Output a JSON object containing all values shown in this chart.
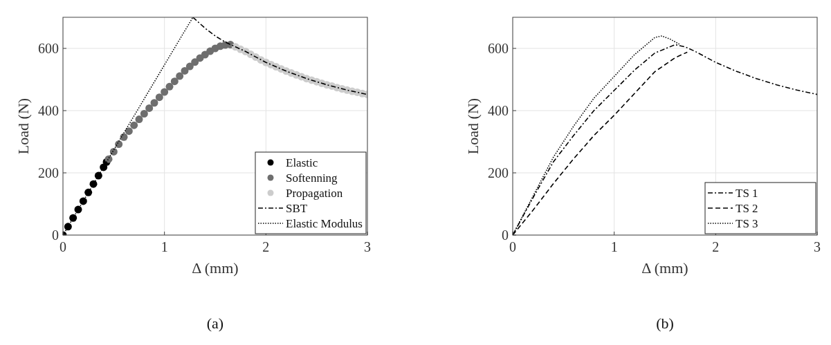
{
  "chart_data": [
    {
      "type": "line",
      "xlabel": "Δ (mm)",
      "ylabel": "Load (N)",
      "annotations": [
        "(a)"
      ],
      "xlim": [
        0,
        3
      ],
      "ylim": [
        0,
        700
      ],
      "xticks": [
        0,
        1,
        2,
        3
      ],
      "yticks": [
        0,
        200,
        400,
        600
      ],
      "grid": true,
      "legend": "bottom right",
      "series": [
        {
          "name": "Elastic",
          "type": "scatter",
          "marker": "circle",
          "color": "#000000",
          "x": [
            0,
            0.05,
            0.1,
            0.15,
            0.2,
            0.25,
            0.3,
            0.35,
            0.4,
            0.43
          ],
          "values": [
            0,
            27,
            55,
            82,
            109,
            137,
            164,
            191,
            218,
            235
          ]
        },
        {
          "name": "Softenning",
          "type": "scatter",
          "marker": "circle",
          "color": "#6e6e6e",
          "x": [
            0.45,
            0.5,
            0.55,
            0.6,
            0.65,
            0.7,
            0.75,
            0.8,
            0.85,
            0.9,
            0.95,
            1.0,
            1.05,
            1.1,
            1.15,
            1.2,
            1.25,
            1.3,
            1.35,
            1.4,
            1.45,
            1.5,
            1.55,
            1.6,
            1.65
          ],
          "values": [
            244,
            268,
            292,
            315,
            334,
            353,
            372,
            390,
            408,
            425,
            443,
            460,
            477,
            494,
            511,
            528,
            542,
            556,
            569,
            580,
            591,
            600,
            607,
            611,
            612
          ]
        },
        {
          "name": "Propagation",
          "type": "scatter",
          "marker": "circle",
          "color": "#cccccc",
          "x": [
            1.7,
            1.75,
            1.8,
            1.85,
            1.9,
            1.95,
            2.0,
            2.05,
            2.1,
            2.15,
            2.2,
            2.25,
            2.3,
            2.35,
            2.4,
            2.45,
            2.5,
            2.55,
            2.6,
            2.65,
            2.7,
            2.75,
            2.8,
            2.85,
            2.9,
            2.95,
            3.0
          ],
          "values": [
            605,
            597,
            590,
            581,
            572,
            563,
            555,
            548,
            541,
            534,
            527,
            521,
            515,
            509,
            503,
            498,
            493,
            488,
            483,
            479,
            474,
            470,
            466,
            462,
            459,
            455,
            452
          ]
        },
        {
          "name": "SBT",
          "type": "line",
          "line_style": "dashdot",
          "color": "#000000",
          "x": [
            1.28,
            1.4,
            1.5,
            1.6,
            1.7,
            1.8,
            2.0,
            2.2,
            2.4,
            2.6,
            2.8,
            3.0
          ],
          "values": [
            700,
            665,
            640,
            620,
            605,
            590,
            555,
            527,
            503,
            483,
            466,
            452
          ]
        },
        {
          "name": "Elastic Modulus",
          "type": "line",
          "line_style": "dotted",
          "color": "#000000",
          "x": [
            0,
            1.28
          ],
          "values": [
            0,
            700
          ]
        }
      ]
    },
    {
      "type": "line",
      "xlabel": "Δ (mm)",
      "ylabel": "Load (N)",
      "annotations": [
        "(b)"
      ],
      "xlim": [
        0,
        3
      ],
      "ylim": [
        0,
        700
      ],
      "xticks": [
        0,
        1,
        2,
        3
      ],
      "yticks": [
        0,
        200,
        400,
        600
      ],
      "grid": true,
      "legend": "bottom right",
      "series": [
        {
          "name": "TS 1",
          "line_style": "dashdot",
          "color": "#000000",
          "x": [
            0,
            0.2,
            0.4,
            0.6,
            0.8,
            1.0,
            1.2,
            1.4,
            1.6,
            1.7,
            1.8,
            2.0,
            2.2,
            2.4,
            2.6,
            2.8,
            3.0
          ],
          "values": [
            0,
            120,
            235,
            320,
            400,
            465,
            530,
            585,
            612,
            605,
            590,
            555,
            527,
            503,
            483,
            466,
            452
          ]
        },
        {
          "name": "TS 2",
          "line_style": "dashed",
          "color": "#000000",
          "x": [
            0,
            0.2,
            0.4,
            0.6,
            0.8,
            1.0,
            1.2,
            1.4,
            1.6,
            1.72
          ],
          "values": [
            0,
            80,
            165,
            245,
            320,
            385,
            455,
            525,
            570,
            588
          ]
        },
        {
          "name": "TS 3",
          "line_style": "dotted",
          "color": "#000000",
          "x": [
            0,
            0.2,
            0.4,
            0.6,
            0.8,
            1.0,
            1.2,
            1.4,
            1.47,
            1.55,
            1.65
          ],
          "values": [
            0,
            125,
            250,
            350,
            440,
            510,
            580,
            635,
            640,
            630,
            612
          ]
        }
      ]
    }
  ]
}
